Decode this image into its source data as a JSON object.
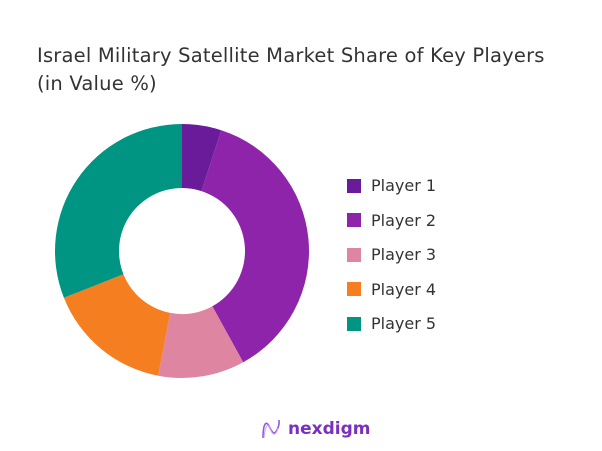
{
  "chart_data": {
    "type": "pie",
    "donut": true,
    "title": "Israel Military Satellite Market Share of Key Players (in Value %)",
    "unit": "%",
    "categories": [
      "Player 1",
      "Player 2",
      "Player 3",
      "Player 4",
      "Player 5"
    ],
    "values": [
      5,
      37,
      11,
      16,
      31
    ],
    "colors": [
      "#6a1b9a",
      "#8e24aa",
      "#de85a1",
      "#f57f20",
      "#009483"
    ],
    "legend_position": "right"
  },
  "brand": {
    "name": "nexdigm",
    "color": "#7b2fbe"
  }
}
